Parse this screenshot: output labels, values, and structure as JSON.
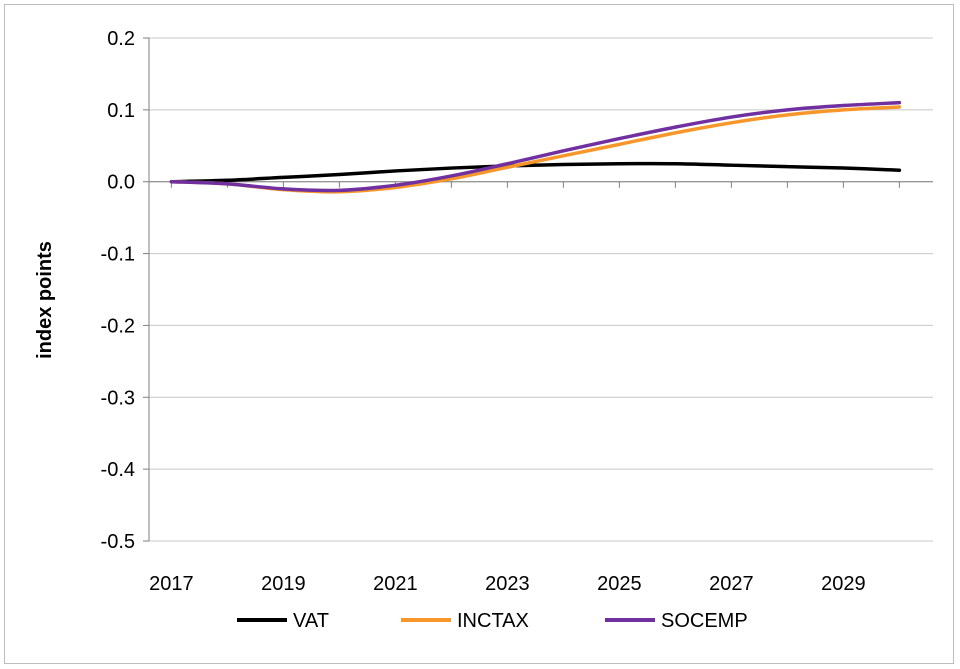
{
  "chart_data": {
    "type": "line",
    "title": "",
    "xlabel": "",
    "ylabel": "index points",
    "x": [
      2017,
      2018,
      2019,
      2020,
      2021,
      2022,
      2023,
      2024,
      2025,
      2026,
      2027,
      2028,
      2029,
      2030
    ],
    "x_tick_labels": [
      "2017",
      "2019",
      "2021",
      "2023",
      "2025",
      "2027",
      "2029"
    ],
    "x_ticks": [
      2017,
      2019,
      2021,
      2023,
      2025,
      2027,
      2029
    ],
    "y_ticks": [
      0.2,
      0.1,
      0.0,
      -0.1,
      -0.2,
      -0.3,
      -0.4,
      -0.5
    ],
    "y_tick_labels": [
      "0.2",
      "0.1",
      "0.0",
      "-0.1",
      "-0.2",
      "-0.3",
      "-0.4",
      "-0.5"
    ],
    "xlim": [
      2016.6,
      2030.6
    ],
    "ylim": [
      -0.5,
      0.2
    ],
    "grid": "horizontal",
    "legend_position": "bottom",
    "series": [
      {
        "name": "VAT",
        "color": "#000000",
        "values": [
          0.0,
          0.002,
          0.006,
          0.01,
          0.015,
          0.019,
          0.022,
          0.024,
          0.025,
          0.025,
          0.023,
          0.021,
          0.019,
          0.016
        ]
      },
      {
        "name": "INCTAX",
        "color": "#f7972b",
        "values": [
          0.0,
          -0.003,
          -0.011,
          -0.014,
          -0.008,
          0.004,
          0.02,
          0.036,
          0.052,
          0.068,
          0.082,
          0.093,
          0.1,
          0.104
        ]
      },
      {
        "name": "SOCEMP",
        "color": "#7030a0",
        "values": [
          0.0,
          -0.003,
          -0.01,
          -0.012,
          -0.005,
          0.008,
          0.025,
          0.043,
          0.06,
          0.076,
          0.09,
          0.1,
          0.106,
          0.11
        ]
      }
    ]
  }
}
